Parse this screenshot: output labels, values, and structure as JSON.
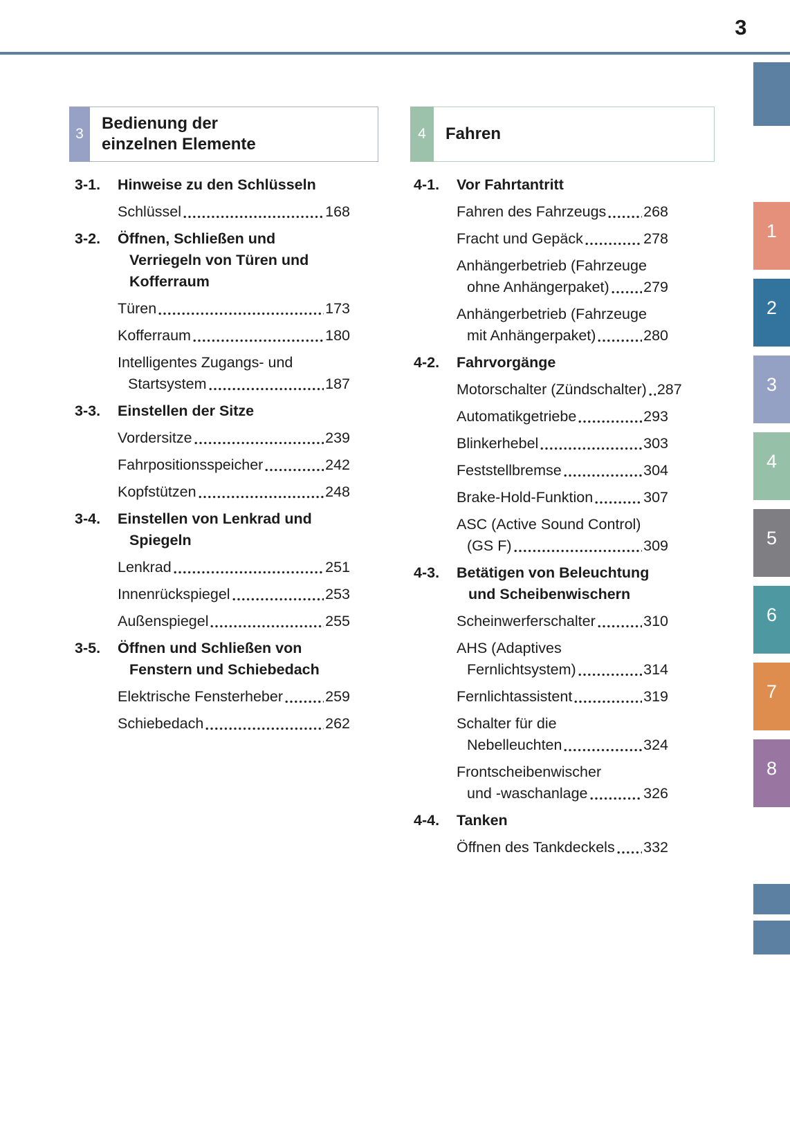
{
  "page_number": "3",
  "rule_color": "#5c80a2",
  "text_color": "#1b1b1b",
  "columns": [
    {
      "chapter": {
        "number": "3",
        "title_lines": [
          "Bedienung der",
          "einzelnen Elemente"
        ],
        "tab_color": "#96a1c5",
        "border_color": "#a9b1c4"
      },
      "items": [
        {
          "type": "section",
          "num": "3-1.",
          "lines": [
            "Hinweise zu den Schlüsseln"
          ]
        },
        {
          "type": "entry",
          "pre": [],
          "label": "Schlüssel",
          "page": "168"
        },
        {
          "type": "section",
          "num": "3-2.",
          "lines": [
            "Öffnen, Schließen und",
            "Verriegeln von Türen und",
            "Kofferraum"
          ]
        },
        {
          "type": "entry",
          "pre": [],
          "label": "Türen",
          "page": "173"
        },
        {
          "type": "entry",
          "pre": [],
          "label": "Kofferraum",
          "page": "180"
        },
        {
          "type": "entry",
          "pre": [
            "Intelligentes Zugangs- und"
          ],
          "label": "Startsystem",
          "page": "187"
        },
        {
          "type": "section",
          "num": "3-3.",
          "lines": [
            "Einstellen der Sitze"
          ]
        },
        {
          "type": "entry",
          "pre": [],
          "label": "Vordersitze",
          "page": "239"
        },
        {
          "type": "entry",
          "pre": [],
          "label": "Fahrpositionsspeicher",
          "page": "242"
        },
        {
          "type": "entry",
          "pre": [],
          "label": "Kopfstützen",
          "page": "248"
        },
        {
          "type": "section",
          "num": "3-4.",
          "lines": [
            "Einstellen von Lenkrad und",
            "Spiegeln"
          ]
        },
        {
          "type": "entry",
          "pre": [],
          "label": "Lenkrad",
          "page": "251"
        },
        {
          "type": "entry",
          "pre": [],
          "label": "Innenrückspiegel",
          "page": "253"
        },
        {
          "type": "entry",
          "pre": [],
          "label": "Außenspiegel",
          "page": "255"
        },
        {
          "type": "section",
          "num": "3-5.",
          "lines": [
            "Öffnen und Schließen von",
            "Fenstern und Schiebedach"
          ]
        },
        {
          "type": "entry",
          "pre": [],
          "label": "Elektrische Fensterheber",
          "page": "259"
        },
        {
          "type": "entry",
          "pre": [],
          "label": "Schiebedach",
          "page": "262"
        }
      ]
    },
    {
      "chapter": {
        "number": "4",
        "title_lines": [
          "Fahren"
        ],
        "tab_color": "#9cc2ab",
        "border_color": "#b5cfc2"
      },
      "items": [
        {
          "type": "section",
          "num": "4-1.",
          "lines": [
            "Vor Fahrtantritt"
          ]
        },
        {
          "type": "entry",
          "pre": [],
          "label": "Fahren des Fahrzeugs",
          "page": "268"
        },
        {
          "type": "entry",
          "pre": [],
          "label": "Fracht und Gepäck",
          "page": "278"
        },
        {
          "type": "entry",
          "pre": [
            "Anhängerbetrieb (Fahrzeuge"
          ],
          "label": "ohne Anhängerpaket)",
          "page": "279"
        },
        {
          "type": "entry",
          "pre": [
            "Anhängerbetrieb (Fahrzeuge"
          ],
          "label": "mit Anhängerpaket)",
          "page": "280"
        },
        {
          "type": "section",
          "num": "4-2.",
          "lines": [
            "Fahrvorgänge"
          ]
        },
        {
          "type": "entry",
          "pre": [],
          "label": "Motorschalter (Zündschalter)",
          "page": "287"
        },
        {
          "type": "entry",
          "pre": [],
          "label": "Automatikgetriebe",
          "page": "293"
        },
        {
          "type": "entry",
          "pre": [],
          "label": "Blinkerhebel",
          "page": "303"
        },
        {
          "type": "entry",
          "pre": [],
          "label": "Feststellbremse",
          "page": "304"
        },
        {
          "type": "entry",
          "pre": [],
          "label": "Brake-Hold-Funktion",
          "page": "307"
        },
        {
          "type": "entry",
          "pre": [
            "ASC (Active Sound Control)"
          ],
          "label": "(GS F)",
          "page": "309"
        },
        {
          "type": "section",
          "num": "4-3.",
          "lines": [
            "Betätigen von Beleuchtung",
            "und Scheibenwischern"
          ]
        },
        {
          "type": "entry",
          "pre": [],
          "label": "Scheinwerferschalter",
          "page": "310"
        },
        {
          "type": "entry",
          "pre": [
            "AHS (Adaptives"
          ],
          "label": "Fernlichtsystem)",
          "page": "314"
        },
        {
          "type": "entry",
          "pre": [],
          "label": "Fernlichtassistent",
          "page": "319"
        },
        {
          "type": "entry",
          "pre": [
            "Schalter für die"
          ],
          "label": "Nebelleuchten",
          "page": "324"
        },
        {
          "type": "entry",
          "pre": [
            "Frontscheibenwischer"
          ],
          "label": "und -waschanlage",
          "page": "326"
        },
        {
          "type": "section",
          "num": "4-4.",
          "lines": [
            "Tanken"
          ]
        },
        {
          "type": "entry",
          "pre": [],
          "label": "Öffnen des Tankdeckels",
          "page": "332"
        }
      ]
    }
  ],
  "side_tabs": {
    "top": {
      "color": "#5c80a2"
    },
    "numbered": [
      {
        "label": "1",
        "color": "#e5907b"
      },
      {
        "label": "2",
        "color": "#33749f"
      },
      {
        "label": "3",
        "color": "#94a1c5"
      },
      {
        "label": "4",
        "color": "#97c0a8"
      },
      {
        "label": "5",
        "color": "#7f7e82"
      },
      {
        "label": "6",
        "color": "#4e98a2"
      },
      {
        "label": "7",
        "color": "#de8d4e"
      },
      {
        "label": "8",
        "color": "#9975a2"
      }
    ],
    "bottom": [
      {
        "color": "#5c80a2"
      },
      {
        "color": "#5c80a2"
      }
    ]
  }
}
